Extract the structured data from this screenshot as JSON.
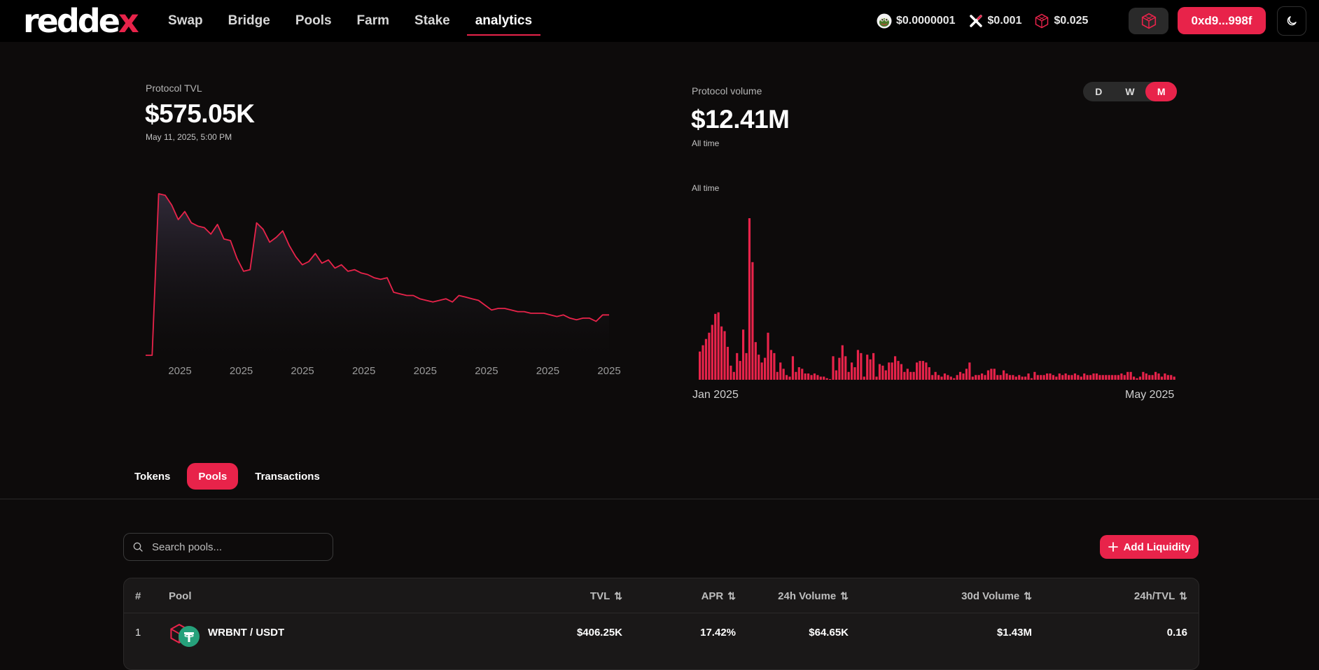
{
  "brand": {
    "logo_main": "redde",
    "logo_x": "x"
  },
  "nav": {
    "items": [
      "Swap",
      "Bridge",
      "Pools",
      "Farm",
      "Stake",
      "analytics"
    ],
    "active": "analytics"
  },
  "prices": [
    {
      "icon": "frog-coin-icon",
      "value": "$0.0000001"
    },
    {
      "icon": "x-coin-icon",
      "value": "$0.001"
    },
    {
      "icon": "cube-coin-icon",
      "value": "$0.025"
    }
  ],
  "wallet": {
    "address": "0xd9...998f"
  },
  "tvl": {
    "label": "Protocol TVL",
    "value": "$575.05K",
    "date": "May 11, 2025, 5:00 PM"
  },
  "volume": {
    "label": "Protocol volume",
    "value": "$12.41M",
    "sub": "All time",
    "chart_caption": "All time"
  },
  "range": {
    "options": [
      "D",
      "W",
      "M"
    ],
    "active": "M"
  },
  "tabs": {
    "items": [
      "Tokens",
      "Pools",
      "Transactions"
    ],
    "active": "Pools"
  },
  "search": {
    "placeholder": "Search pools..."
  },
  "add_liquidity": {
    "label": "Add Liquidity"
  },
  "table": {
    "headers": {
      "num": "#",
      "pool": "Pool",
      "tvl": "TVL",
      "apr": "APR",
      "vol24": "24h Volume",
      "vol30": "30d Volume",
      "ratio": "24h/TVL"
    },
    "rows": [
      {
        "num": "1",
        "pool": "WRBNT / USDT",
        "tvl": "$406.25K",
        "apr": "17.42%",
        "vol24": "$64.65K",
        "vol30": "$1.43M",
        "ratio": "0.16"
      }
    ]
  },
  "colors": {
    "accent": "#e8234a",
    "background": "#0d0b0b",
    "topbar": "#000000"
  },
  "chart_data": [
    {
      "type": "area",
      "xlabel": "",
      "ylabel": "",
      "x_tick_labels": [
        "2025",
        "2025",
        "2025",
        "2025",
        "2025",
        "2025",
        "2025",
        "2025"
      ],
      "grid": false,
      "series": [
        {
          "values": [
            0,
            0,
            1.0,
            0.99,
            0.93,
            0.84,
            0.89,
            0.82,
            0.8,
            0.79,
            0.75,
            0.81,
            0.72,
            0.71,
            0.6,
            0.52,
            0.53,
            0.82,
            0.78,
            0.7,
            0.73,
            0.77,
            0.68,
            0.61,
            0.56,
            0.58,
            0.63,
            0.57,
            0.59,
            0.54,
            0.56,
            0.52,
            0.53,
            0.51,
            0.5,
            0.48,
            0.47,
            0.48,
            0.39,
            0.38,
            0.37,
            0.37,
            0.35,
            0.34,
            0.33,
            0.34,
            0.35,
            0.33,
            0.37,
            0.36,
            0.35,
            0.34,
            0.31,
            0.28,
            0.29,
            0.29,
            0.28,
            0.27,
            0.27,
            0.26,
            0.26,
            0.26,
            0.25,
            0.24,
            0.25,
            0.23,
            0.22,
            0.23,
            0.23,
            0.21,
            0.25,
            0.25
          ]
        }
      ]
    },
    {
      "type": "bar",
      "xlabel": "",
      "ylabel": "",
      "x_tick_labels": [
        "Jan 2025",
        "May 2025"
      ],
      "grid": false,
      "series": [
        {
          "values": [
            18,
            22,
            26,
            30,
            35,
            42,
            43,
            34,
            31,
            21,
            9,
            5,
            17,
            12,
            32,
            17,
            103,
            75,
            24,
            16,
            11,
            14,
            30,
            19,
            17,
            5,
            11,
            7,
            3,
            2,
            15,
            5,
            8,
            7,
            4,
            4,
            3,
            4,
            3,
            2,
            2,
            1,
            0,
            15,
            6,
            14,
            22,
            15,
            5,
            11,
            8,
            19,
            17,
            2,
            16,
            13,
            17,
            2,
            10,
            9,
            6,
            11,
            11,
            15,
            12,
            10,
            5,
            7,
            5,
            5,
            11,
            12,
            12,
            11,
            8,
            3,
            5,
            3,
            2,
            4,
            3,
            2,
            1,
            3,
            5,
            4,
            7,
            11,
            2,
            3,
            3,
            4,
            3,
            6,
            7,
            7,
            3,
            3,
            6,
            4,
            3,
            3,
            2,
            3,
            2,
            2,
            4,
            1,
            5,
            3,
            3,
            3,
            4,
            4,
            3,
            2,
            4,
            3,
            4,
            3,
            3,
            4,
            3,
            2,
            4,
            3,
            3,
            4,
            4,
            3,
            3,
            3,
            3,
            3,
            3,
            3,
            4,
            3,
            5,
            5,
            2,
            1,
            2,
            5,
            4,
            3,
            3,
            5,
            4,
            2,
            4,
            3,
            3,
            2
          ]
        }
      ]
    }
  ]
}
